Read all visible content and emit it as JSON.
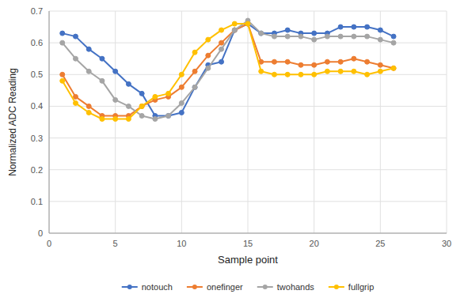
{
  "chart_data": {
    "type": "line",
    "xlabel": "Sample point",
    "ylabel": "Normalized ADC Reading",
    "x": [
      1,
      2,
      3,
      4,
      5,
      6,
      7,
      8,
      9,
      10,
      11,
      12,
      13,
      14,
      15,
      16,
      17,
      18,
      19,
      20,
      21,
      22,
      23,
      24,
      25,
      26
    ],
    "series": [
      {
        "name": "notouch",
        "color": "#4472C4",
        "marker": "o",
        "values": [
          0.63,
          0.62,
          0.58,
          0.55,
          0.51,
          0.47,
          0.44,
          0.37,
          0.37,
          0.38,
          0.46,
          0.53,
          0.54,
          0.64,
          0.66,
          0.63,
          0.63,
          0.64,
          0.63,
          0.63,
          0.63,
          0.65,
          0.65,
          0.65,
          0.64,
          0.62
        ]
      },
      {
        "name": "onefinger",
        "color": "#ED7D31",
        "marker": "o",
        "values": [
          0.5,
          0.43,
          0.4,
          0.37,
          0.37,
          0.37,
          0.4,
          0.42,
          0.43,
          0.46,
          0.51,
          0.56,
          0.6,
          0.64,
          0.66,
          0.54,
          0.54,
          0.54,
          0.53,
          0.53,
          0.54,
          0.54,
          0.55,
          0.54,
          0.53,
          0.52
        ]
      },
      {
        "name": "twohands",
        "color": "#A5A5A5",
        "marker": "o",
        "values": [
          0.6,
          0.55,
          0.51,
          0.48,
          0.42,
          0.4,
          0.37,
          0.36,
          0.37,
          0.41,
          0.46,
          0.52,
          0.58,
          0.64,
          0.67,
          0.63,
          0.62,
          0.62,
          0.62,
          0.61,
          0.62,
          0.62,
          0.62,
          0.62,
          0.61,
          0.6
        ]
      },
      {
        "name": "fullgrip",
        "color": "#FFC000",
        "marker": "o",
        "values": [
          0.48,
          0.41,
          0.38,
          0.36,
          0.36,
          0.36,
          0.4,
          0.43,
          0.44,
          0.5,
          0.57,
          0.61,
          0.64,
          0.66,
          0.66,
          0.51,
          0.5,
          0.5,
          0.5,
          0.5,
          0.51,
          0.51,
          0.51,
          0.5,
          0.51,
          0.52
        ]
      }
    ],
    "xlim": [
      0,
      30
    ],
    "ylim": [
      0,
      0.7
    ],
    "xticks": [
      0,
      5,
      10,
      15,
      20,
      25,
      30
    ],
    "yticks": [
      0,
      0.1,
      0.2,
      0.3,
      0.4,
      0.5,
      0.6,
      0.7
    ],
    "grid": true,
    "legend": "bottom"
  }
}
